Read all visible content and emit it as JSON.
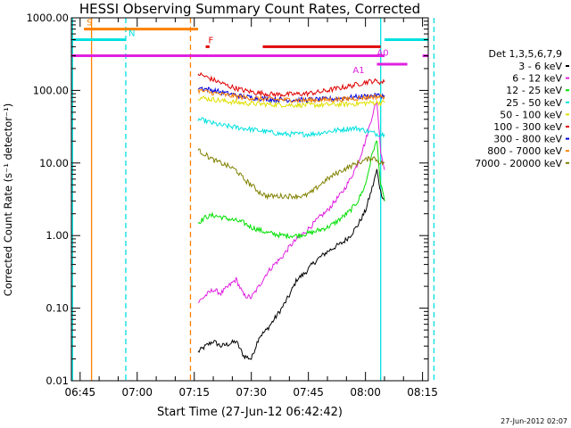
{
  "chart_data": {
    "type": "line",
    "title": "HESSI Observing Summary Count Rates, Corrected",
    "xlabel": "Start Time (27-Jun-12 06:42:42)",
    "ylabel": "Corrected Count Rate (s⁻¹ detector⁻¹)",
    "yscale": "log",
    "xlim_minutes": [
      402.7,
      496.5
    ],
    "ylim": [
      0.01,
      1000
    ],
    "x_ticks": [
      "06:45",
      "07:00",
      "07:15",
      "07:30",
      "07:45",
      "08:00",
      "08:15"
    ],
    "y_ticks": [
      "0.01",
      "0.10",
      "1.00",
      "10.00",
      "100.00",
      "1000.00"
    ],
    "legend_title": "Det 1,3,5,6,7,9",
    "legend_position": "right",
    "data_gap_until": "07:16",
    "data_end": "08:05",
    "series": [
      {
        "name": "3 - 6 keV",
        "color": "#000000",
        "x": [
          "07:16",
          "07:18",
          "07:20",
          "07:22",
          "07:24",
          "07:26",
          "07:28",
          "07:30",
          "07:32",
          "07:34",
          "07:36",
          "07:38",
          "07:40",
          "07:42",
          "07:44",
          "07:46",
          "07:48",
          "07:50",
          "07:52",
          "07:54",
          "07:56",
          "07:58",
          "08:00",
          "08:02",
          "08:03",
          "08:04",
          "08:05"
        ],
        "y": [
          0.025,
          0.03,
          0.035,
          0.03,
          0.032,
          0.035,
          0.022,
          0.02,
          0.04,
          0.05,
          0.07,
          0.1,
          0.15,
          0.25,
          0.3,
          0.4,
          0.5,
          0.6,
          0.7,
          0.8,
          1.0,
          1.4,
          2.2,
          5.0,
          8.0,
          4.0,
          3.0
        ]
      },
      {
        "name": "6 - 12 keV",
        "color": "#e020e0",
        "x": [
          "07:16",
          "07:18",
          "07:20",
          "07:22",
          "07:24",
          "07:26",
          "07:28",
          "07:30",
          "07:32",
          "07:34",
          "07:36",
          "07:38",
          "07:40",
          "07:42",
          "07:44",
          "07:46",
          "07:48",
          "07:50",
          "07:52",
          "07:54",
          "07:56",
          "07:58",
          "08:00",
          "08:02",
          "08:03",
          "08:04",
          "08:05"
        ],
        "y": [
          0.12,
          0.15,
          0.18,
          0.16,
          0.2,
          0.25,
          0.15,
          0.14,
          0.2,
          0.3,
          0.4,
          0.5,
          0.7,
          0.9,
          1.1,
          1.4,
          1.8,
          2.2,
          3.0,
          4.0,
          6.0,
          10.0,
          20.0,
          50.0,
          70.0,
          15.0,
          8.0
        ]
      },
      {
        "name": "12 - 25 keV",
        "color": "#00e000",
        "x": [
          "07:16",
          "07:18",
          "07:20",
          "07:22",
          "07:24",
          "07:26",
          "07:28",
          "07:30",
          "07:32",
          "07:34",
          "07:36",
          "07:38",
          "07:40",
          "07:42",
          "07:44",
          "07:46",
          "07:48",
          "07:50",
          "07:52",
          "07:54",
          "07:56",
          "07:58",
          "08:00",
          "08:02",
          "08:03",
          "08:04",
          "08:05"
        ],
        "y": [
          1.5,
          1.8,
          1.9,
          1.8,
          1.7,
          1.6,
          1.5,
          1.3,
          1.2,
          1.1,
          1.05,
          1.0,
          1.0,
          1.0,
          1.05,
          1.1,
          1.2,
          1.3,
          1.5,
          1.8,
          2.2,
          3.0,
          5.0,
          15.0,
          20.0,
          5.0,
          3.0
        ]
      },
      {
        "name": "25 - 50 keV",
        "color": "#00e0e0",
        "x": [
          "07:16",
          "07:18",
          "07:20",
          "07:22",
          "07:24",
          "07:26",
          "07:28",
          "07:30",
          "07:32",
          "07:34",
          "07:36",
          "07:38",
          "07:40",
          "07:42",
          "07:44",
          "07:46",
          "07:48",
          "07:50",
          "07:52",
          "07:54",
          "07:56",
          "07:58",
          "08:00",
          "08:02",
          "08:03",
          "08:04",
          "08:05"
        ],
        "y": [
          40,
          38,
          35,
          33,
          32,
          31,
          30,
          29,
          28,
          27,
          26,
          25,
          25,
          25,
          25,
          25,
          26,
          27,
          28,
          29,
          30,
          30,
          28,
          26,
          25,
          25,
          25
        ]
      },
      {
        "name": "50 - 100 keV",
        "color": "#e0e000",
        "x": [
          "07:16",
          "07:20",
          "07:24",
          "07:28",
          "07:32",
          "07:36",
          "07:40",
          "07:44",
          "07:48",
          "07:52",
          "07:56",
          "08:00",
          "08:02",
          "08:04",
          "08:05"
        ],
        "y": [
          80,
          75,
          70,
          67,
          65,
          64,
          63,
          63,
          63,
          64,
          65,
          67,
          68,
          68,
          68
        ]
      },
      {
        "name": "100 - 300 keV",
        "color": "#e00000",
        "x": [
          "07:16",
          "07:20",
          "07:24",
          "07:28",
          "07:32",
          "07:36",
          "07:40",
          "07:44",
          "07:48",
          "07:52",
          "07:56",
          "08:00",
          "08:02",
          "08:04",
          "08:05"
        ],
        "y": [
          170,
          140,
          115,
          100,
          92,
          88,
          88,
          90,
          95,
          105,
          115,
          130,
          135,
          130,
          130
        ]
      },
      {
        "name": "300 - 800 keV",
        "color": "#0000e0",
        "x": [
          "07:16",
          "07:20",
          "07:24",
          "07:28",
          "07:32",
          "07:36",
          "07:40",
          "07:44",
          "07:48",
          "07:52",
          "07:56",
          "08:00",
          "08:02",
          "08:04",
          "08:05"
        ],
        "y": [
          110,
          100,
          90,
          82,
          78,
          75,
          74,
          74,
          75,
          77,
          80,
          83,
          85,
          85,
          85
        ]
      },
      {
        "name": "800 - 7000 keV",
        "color": "#ff8000",
        "x": [
          "07:16",
          "07:20",
          "07:24",
          "07:28",
          "07:32",
          "07:36",
          "07:40",
          "07:44",
          "07:48",
          "07:52",
          "07:56",
          "08:00",
          "08:02",
          "08:04",
          "08:05"
        ],
        "y": [
          100,
          92,
          85,
          80,
          77,
          75,
          74,
          73,
          74,
          75,
          77,
          80,
          82,
          82,
          82
        ]
      },
      {
        "name": "7000 - 20000 keV",
        "color": "#808000",
        "x": [
          "07:16",
          "07:18",
          "07:20",
          "07:22",
          "07:24",
          "07:26",
          "07:28",
          "07:30",
          "07:32",
          "07:34",
          "07:36",
          "07:38",
          "07:40",
          "07:42",
          "07:44",
          "07:46",
          "07:48",
          "07:50",
          "07:52",
          "07:54",
          "07:56",
          "07:58",
          "08:00",
          "08:02",
          "08:04",
          "08:05"
        ],
        "y": [
          15,
          13,
          11,
          10,
          9,
          8,
          6,
          5,
          4,
          3.5,
          3.5,
          3.5,
          3.5,
          3.5,
          3.5,
          4.0,
          5,
          6,
          7,
          8,
          9,
          10,
          11,
          12,
          10,
          10
        ]
      }
    ],
    "flag_bars": [
      {
        "label": "S",
        "color": "#ff8000",
        "y": 700,
        "segments": [
          [
            "06:46",
            "07:16"
          ]
        ]
      },
      {
        "label": "N",
        "color": "#00e0e0",
        "y": 500,
        "segments": [
          [
            "06:42",
            "06:57"
          ],
          [
            "08:05",
            "08:20"
          ]
        ]
      },
      {
        "label": "F",
        "color": "#e00000",
        "y": 400,
        "segments": [
          [
            "07:18",
            "07:19"
          ],
          [
            "07:33",
            "08:04"
          ]
        ]
      },
      {
        "label": "A0",
        "color": "#e020e0",
        "y": 300,
        "segments": [
          [
            "06:42",
            "08:05"
          ],
          [
            "08:15",
            "08:20"
          ]
        ]
      },
      {
        "label": "A1",
        "color": "#e020e0",
        "y": 230,
        "segments": [
          [
            "08:03",
            "08:11"
          ]
        ]
      }
    ],
    "vertical_markers": [
      {
        "x": "06:43",
        "color": "#00e0e0",
        "style": "solid"
      },
      {
        "x": "06:48",
        "color": "#ff8000",
        "style": "solid"
      },
      {
        "x": "06:57",
        "color": "#00e0e0",
        "style": "dashed"
      },
      {
        "x": "07:14",
        "color": "#ff8000",
        "style": "dashed"
      },
      {
        "x": "08:04",
        "color": "#00e0e0",
        "style": "solid"
      },
      {
        "x": "08:18",
        "color": "#00e0e0",
        "style": "dashed"
      }
    ]
  },
  "footer": {
    "timestamp": "27-Jun-2012 02:07"
  }
}
